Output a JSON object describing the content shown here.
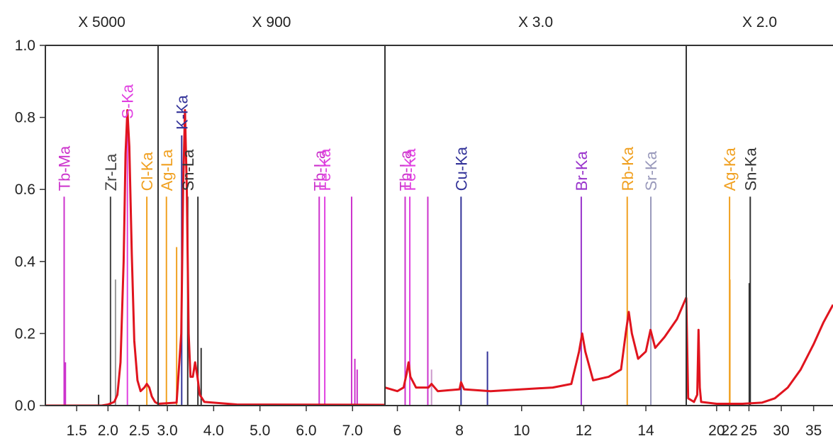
{
  "chart_data": {
    "type": "line",
    "title": "",
    "xlabel": "",
    "ylabel": "",
    "ylim": [
      0,
      1.0
    ],
    "y_ticks": [
      "0.0",
      "0.2",
      "0.4",
      "0.6",
      "0.8",
      "1.0"
    ],
    "y_tick_values": [
      0,
      0.2,
      0.4,
      0.6,
      0.8,
      1.0
    ],
    "spectrum_color": "#e0141e",
    "panels": [
      {
        "scale_label": "X 5000",
        "x_range": [
          1.0,
          2.8
        ],
        "x_ticks": [
          {
            "v": 1.5,
            "t": "1.5"
          },
          {
            "v": 2.0,
            "t": "2.0"
          },
          {
            "v": 2.5,
            "t": "2.5"
          }
        ],
        "spectrum": [
          [
            1.0,
            0.0
          ],
          [
            1.9,
            0.0
          ],
          [
            2.0,
            0.003
          ],
          [
            2.1,
            0.01
          ],
          [
            2.15,
            0.03
          ],
          [
            2.2,
            0.12
          ],
          [
            2.25,
            0.4
          ],
          [
            2.28,
            0.7
          ],
          [
            2.31,
            0.82
          ],
          [
            2.34,
            0.72
          ],
          [
            2.38,
            0.42
          ],
          [
            2.42,
            0.18
          ],
          [
            2.47,
            0.07
          ],
          [
            2.52,
            0.04
          ],
          [
            2.58,
            0.05
          ],
          [
            2.62,
            0.06
          ],
          [
            2.66,
            0.05
          ],
          [
            2.7,
            0.025
          ],
          [
            2.75,
            0.01
          ],
          [
            2.8,
            0.005
          ]
        ],
        "lines": [
          {
            "x": 1.3,
            "h": 0.58,
            "label": "Tb-Ma",
            "color": "#cc33cc"
          },
          {
            "x": 1.32,
            "h": 0.12,
            "label": "",
            "color": "#cc33cc"
          },
          {
            "x": 1.85,
            "h": 0.03,
            "label": "",
            "color": "#333333"
          },
          {
            "x": 2.04,
            "h": 0.58,
            "label": "Zr-La",
            "color": "#444444"
          },
          {
            "x": 2.12,
            "h": 0.35,
            "label": "",
            "color": "#999999"
          },
          {
            "x": 2.31,
            "h": 0.78,
            "label": "S-Ka",
            "color": "#e040e0"
          },
          {
            "x": 2.62,
            "h": 0.58,
            "label": "Cl-Ka",
            "color": "#f0a020"
          }
        ]
      },
      {
        "scale_label": "X 900",
        "x_range": [
          2.8,
          7.7
        ],
        "x_ticks": [
          {
            "v": 3.0,
            "t": "3.0"
          },
          {
            "v": 4.0,
            "t": "4.0"
          },
          {
            "v": 5.0,
            "t": "5.0"
          },
          {
            "v": 6.0,
            "t": "6.0"
          },
          {
            "v": 7.0,
            "t": "7.0"
          }
        ],
        "spectrum": [
          [
            2.8,
            0.005
          ],
          [
            3.2,
            0.008
          ],
          [
            3.3,
            0.2
          ],
          [
            3.34,
            0.6
          ],
          [
            3.38,
            0.82
          ],
          [
            3.42,
            0.6
          ],
          [
            3.46,
            0.2
          ],
          [
            3.5,
            0.08
          ],
          [
            3.55,
            0.08
          ],
          [
            3.6,
            0.12
          ],
          [
            3.65,
            0.08
          ],
          [
            3.7,
            0.03
          ],
          [
            3.8,
            0.01
          ],
          [
            4.5,
            0.003
          ],
          [
            7.7,
            0.002
          ]
        ],
        "lines": [
          {
            "x": 2.98,
            "h": 0.58,
            "label": "Ag-La",
            "color": "#f0a020"
          },
          {
            "x": 3.2,
            "h": 0.44,
            "label": "",
            "color": "#f0a020"
          },
          {
            "x": 3.31,
            "h": 0.75,
            "label": "K-Ka",
            "color": "#333399"
          },
          {
            "x": 3.44,
            "h": 0.58,
            "label": "Sn-La",
            "color": "#333333"
          },
          {
            "x": 3.66,
            "h": 0.58,
            "label": "",
            "color": "#333333"
          },
          {
            "x": 3.73,
            "h": 0.16,
            "label": "",
            "color": "#333333"
          },
          {
            "x": 6.28,
            "h": 0.58,
            "label": "Tb-La",
            "color": "#cc33cc"
          },
          {
            "x": 6.4,
            "h": 0.58,
            "label": "Fe-Ka",
            "color": "#e040e0"
          },
          {
            "x": 6.98,
            "h": 0.58,
            "label": "",
            "color": "#cc33cc"
          },
          {
            "x": 7.05,
            "h": 0.13,
            "label": "",
            "color": "#cc33cc"
          },
          {
            "x": 7.1,
            "h": 0.1,
            "label": "",
            "color": "#cc33cc"
          }
        ]
      },
      {
        "scale_label": "X 3.0",
        "x_range": [
          5.6,
          15.3
        ],
        "x_ticks": [
          {
            "v": 6,
            "t": "6"
          },
          {
            "v": 8,
            "t": "8"
          },
          {
            "v": 10,
            "t": "10"
          },
          {
            "v": 12,
            "t": "12"
          },
          {
            "v": 14,
            "t": "14"
          }
        ],
        "spectrum": [
          [
            5.6,
            0.05
          ],
          [
            6.0,
            0.04
          ],
          [
            6.2,
            0.05
          ],
          [
            6.3,
            0.09
          ],
          [
            6.36,
            0.12
          ],
          [
            6.42,
            0.08
          ],
          [
            6.6,
            0.05
          ],
          [
            7.0,
            0.05
          ],
          [
            7.1,
            0.06
          ],
          [
            7.3,
            0.04
          ],
          [
            8.0,
            0.045
          ],
          [
            8.05,
            0.065
          ],
          [
            8.15,
            0.045
          ],
          [
            9.0,
            0.04
          ],
          [
            10.0,
            0.045
          ],
          [
            11.0,
            0.05
          ],
          [
            11.6,
            0.06
          ],
          [
            11.85,
            0.15
          ],
          [
            11.95,
            0.2
          ],
          [
            12.05,
            0.15
          ],
          [
            12.3,
            0.07
          ],
          [
            12.8,
            0.08
          ],
          [
            13.2,
            0.1
          ],
          [
            13.35,
            0.2
          ],
          [
            13.45,
            0.26
          ],
          [
            13.55,
            0.2
          ],
          [
            13.75,
            0.13
          ],
          [
            14.0,
            0.15
          ],
          [
            14.15,
            0.21
          ],
          [
            14.3,
            0.16
          ],
          [
            14.6,
            0.19
          ],
          [
            15.0,
            0.24
          ],
          [
            15.3,
            0.3
          ]
        ],
        "lines": [
          {
            "x": 6.25,
            "h": 0.58,
            "label": "Tb-La",
            "color": "#cc33cc"
          },
          {
            "x": 6.4,
            "h": 0.58,
            "label": "Fe-Ka",
            "color": "#e040e0"
          },
          {
            "x": 6.98,
            "h": 0.58,
            "label": "",
            "color": "#cc33cc"
          },
          {
            "x": 7.1,
            "h": 0.1,
            "label": "",
            "color": "#cc99cc"
          },
          {
            "x": 8.05,
            "h": 0.58,
            "label": "Cu-Ka",
            "color": "#333399"
          },
          {
            "x": 8.9,
            "h": 0.15,
            "label": "",
            "color": "#333399"
          },
          {
            "x": 11.92,
            "h": 0.58,
            "label": "Br-Ka",
            "color": "#9933cc"
          },
          {
            "x": 13.4,
            "h": 0.58,
            "label": "Rb-Ka",
            "color": "#f0a020"
          },
          {
            "x": 14.16,
            "h": 0.58,
            "label": "Sr-Ka",
            "color": "#9999bb"
          }
        ]
      },
      {
        "scale_label": "X 2.0",
        "x_range": [
          15.3,
          38.0
        ],
        "x_ticks": [
          {
            "v": 20,
            "t": "20"
          },
          {
            "v": 22,
            "t": "22"
          },
          {
            "v": 25,
            "t": "25"
          },
          {
            "v": 30,
            "t": "30"
          },
          {
            "v": 35,
            "t": "35"
          }
        ],
        "spectrum": [
          [
            15.3,
            0.3
          ],
          [
            15.6,
            0.02
          ],
          [
            16.5,
            0.01
          ],
          [
            17.0,
            0.03
          ],
          [
            17.2,
            0.21
          ],
          [
            17.4,
            0.05
          ],
          [
            17.6,
            0.01
          ],
          [
            20.0,
            0.005
          ],
          [
            24.0,
            0.005
          ],
          [
            27.0,
            0.008
          ],
          [
            29.0,
            0.02
          ],
          [
            31.0,
            0.05
          ],
          [
            33.0,
            0.1
          ],
          [
            35.0,
            0.17
          ],
          [
            36.5,
            0.23
          ],
          [
            38.0,
            0.28
          ]
        ],
        "lines": [
          {
            "x": 22.0,
            "h": 0.58,
            "label": "Ag-Ka",
            "color": "#f0a020"
          },
          {
            "x": 22.05,
            "h": 0.35,
            "label": "",
            "color": "#f0a020"
          },
          {
            "x": 25.2,
            "h": 0.58,
            "label": "Sn-Ka",
            "color": "#333333"
          },
          {
            "x": 25.05,
            "h": 0.34,
            "label": "",
            "color": "#333333"
          }
        ]
      }
    ]
  }
}
